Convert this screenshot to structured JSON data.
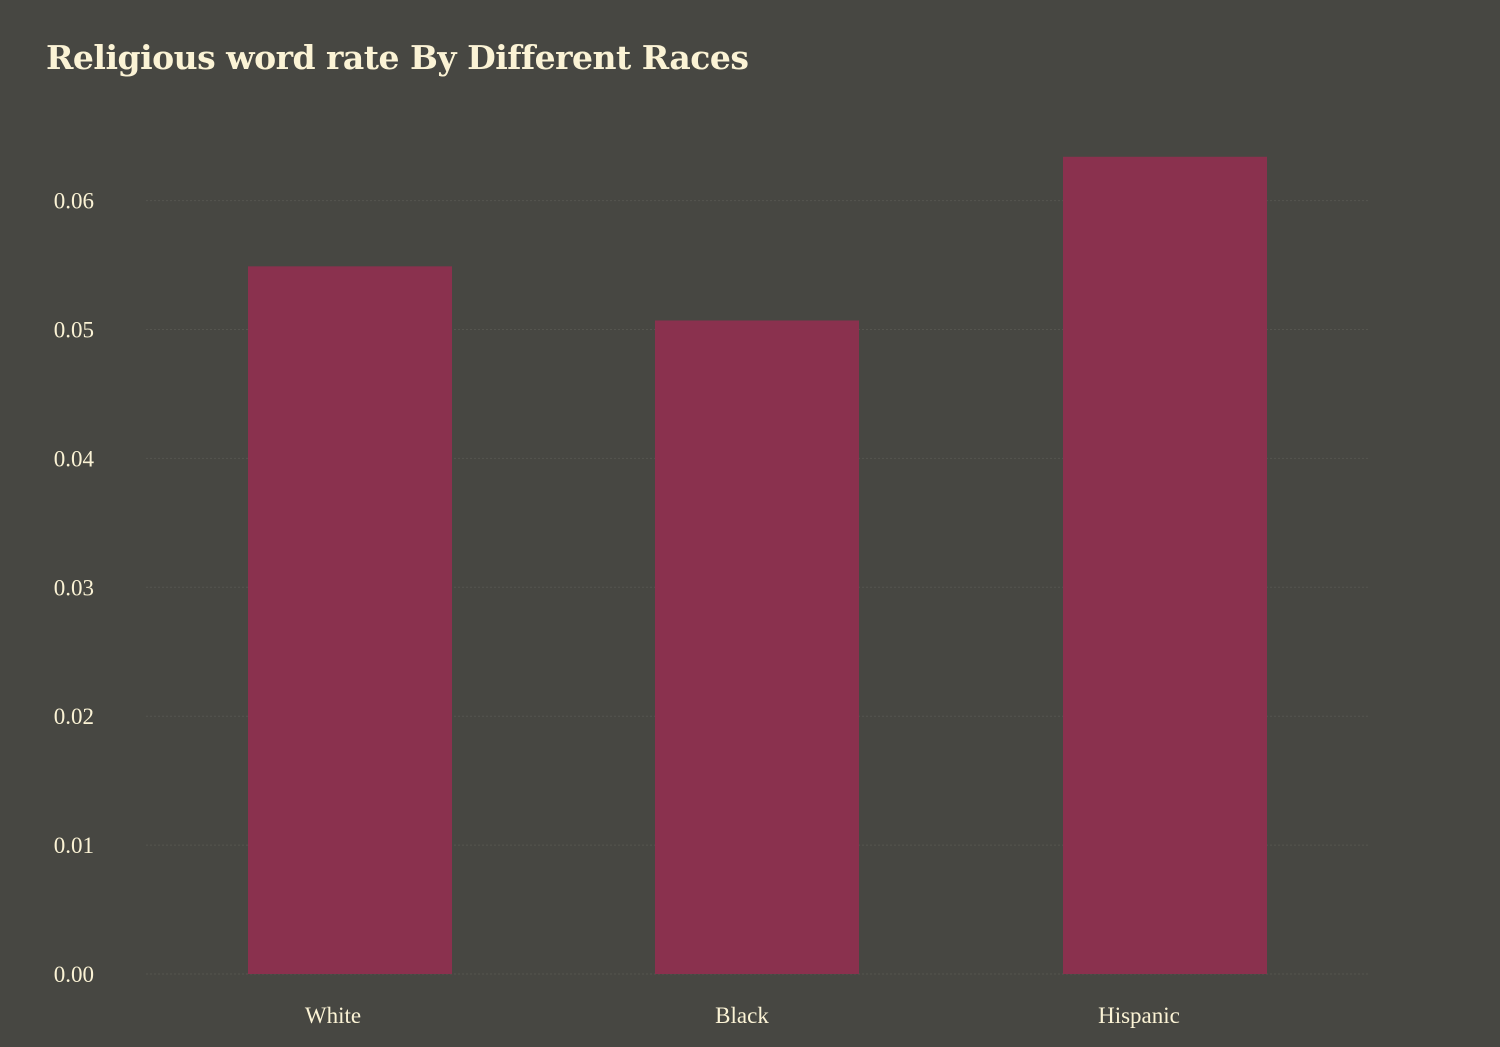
{
  "chart_data": {
    "type": "bar",
    "title": "Religious word rate By Different Races",
    "xlabel": "",
    "ylabel": "",
    "categories": [
      "White",
      "Black",
      "Hispanic"
    ],
    "values": [
      0.0549,
      0.0507,
      0.0634
    ],
    "ylim": [
      0,
      0.065
    ],
    "yticks": [
      "0.00",
      "0.01",
      "0.02",
      "0.03",
      "0.04",
      "0.05",
      "0.06"
    ],
    "grid": true,
    "legend": "none",
    "colors": {
      "background": "#474742",
      "bar": "#8A314E",
      "text": "#FBF3D5"
    }
  }
}
